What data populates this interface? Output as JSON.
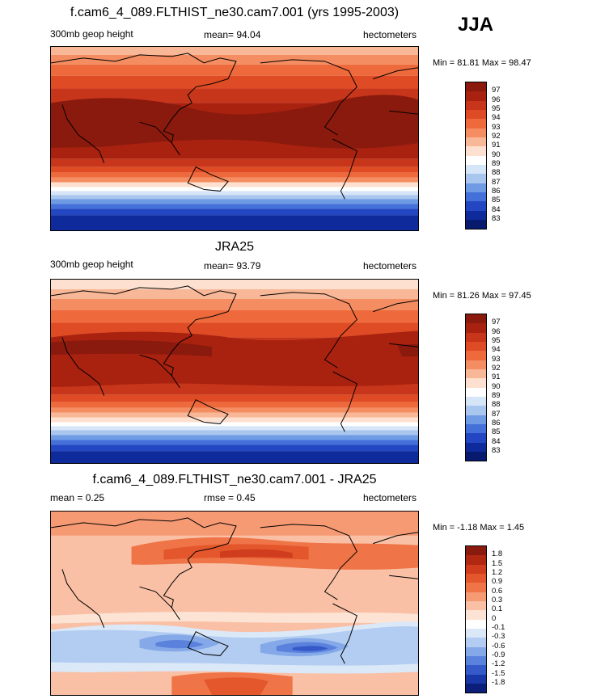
{
  "season": "JJA",
  "panels": [
    {
      "title": "f.cam6_4_089.FLTHIST_ne30.cam7.001 (yrs 1995-2003)",
      "left_label": "300mb geop height",
      "center_label": "mean=  94.04",
      "right_label": "hectometers",
      "minmax": "Min =  81.81 Max =  98.47",
      "colorbar_labels": [
        "97",
        "96",
        "95",
        "94",
        "93",
        "92",
        "91",
        "90",
        "89",
        "88",
        "87",
        "86",
        "85",
        "84",
        "83"
      ],
      "colorbar_colors": [
        "#8b1a0e",
        "#a8220f",
        "#c7361a",
        "#df4b24",
        "#ee6a3c",
        "#f48d61",
        "#f8b797",
        "#fde0cf",
        "#ffffff",
        "#d6e5f7",
        "#a9c6ee",
        "#6f9ae4",
        "#4470d9",
        "#2347c2",
        "#0f2a9a",
        "#081a6e"
      ],
      "color_type": "sequential"
    },
    {
      "title": "JRA25",
      "left_label": "300mb geop height",
      "center_label": "mean=  93.79",
      "right_label": "hectometers",
      "minmax": "Min =  81.26 Max =  97.45",
      "colorbar_labels": [
        "97",
        "96",
        "95",
        "94",
        "93",
        "92",
        "91",
        "90",
        "89",
        "88",
        "87",
        "86",
        "85",
        "84",
        "83"
      ],
      "colorbar_colors": [
        "#8b1a0e",
        "#a8220f",
        "#c7361a",
        "#df4b24",
        "#ee6a3c",
        "#f48d61",
        "#f8b797",
        "#fde0cf",
        "#ffffff",
        "#d6e5f7",
        "#a9c6ee",
        "#6f9ae4",
        "#4470d9",
        "#2347c2",
        "#0f2a9a",
        "#081a6e"
      ],
      "color_type": "sequential"
    },
    {
      "title": "f.cam6_4_089.FLTHIST_ne30.cam7.001 - JRA25",
      "left_label": "mean =   0.25",
      "center_label": "rmse =   0.45",
      "right_label": "hectometers",
      "minmax": "Min =  -1.18 Max =   1.45",
      "colorbar_labels": [
        "1.8",
        "1.5",
        "1.2",
        "0.9",
        "0.6",
        "0.3",
        "0.1",
        "0",
        "-0.1",
        "-0.3",
        "-0.6",
        "-0.9",
        "-1.2",
        "-1.5",
        "-1.8"
      ],
      "colorbar_colors": [
        "#8b1a0e",
        "#b02712",
        "#cf3c1e",
        "#e4562b",
        "#ef7447",
        "#f59a73",
        "#f9c0a5",
        "#fde3d4",
        "#ffffff",
        "#dbe8f8",
        "#b2cdf1",
        "#85a9e8",
        "#5a82dc",
        "#3559c8",
        "#1a37a8",
        "#0b1f7a"
      ],
      "color_type": "diverging"
    }
  ]
}
